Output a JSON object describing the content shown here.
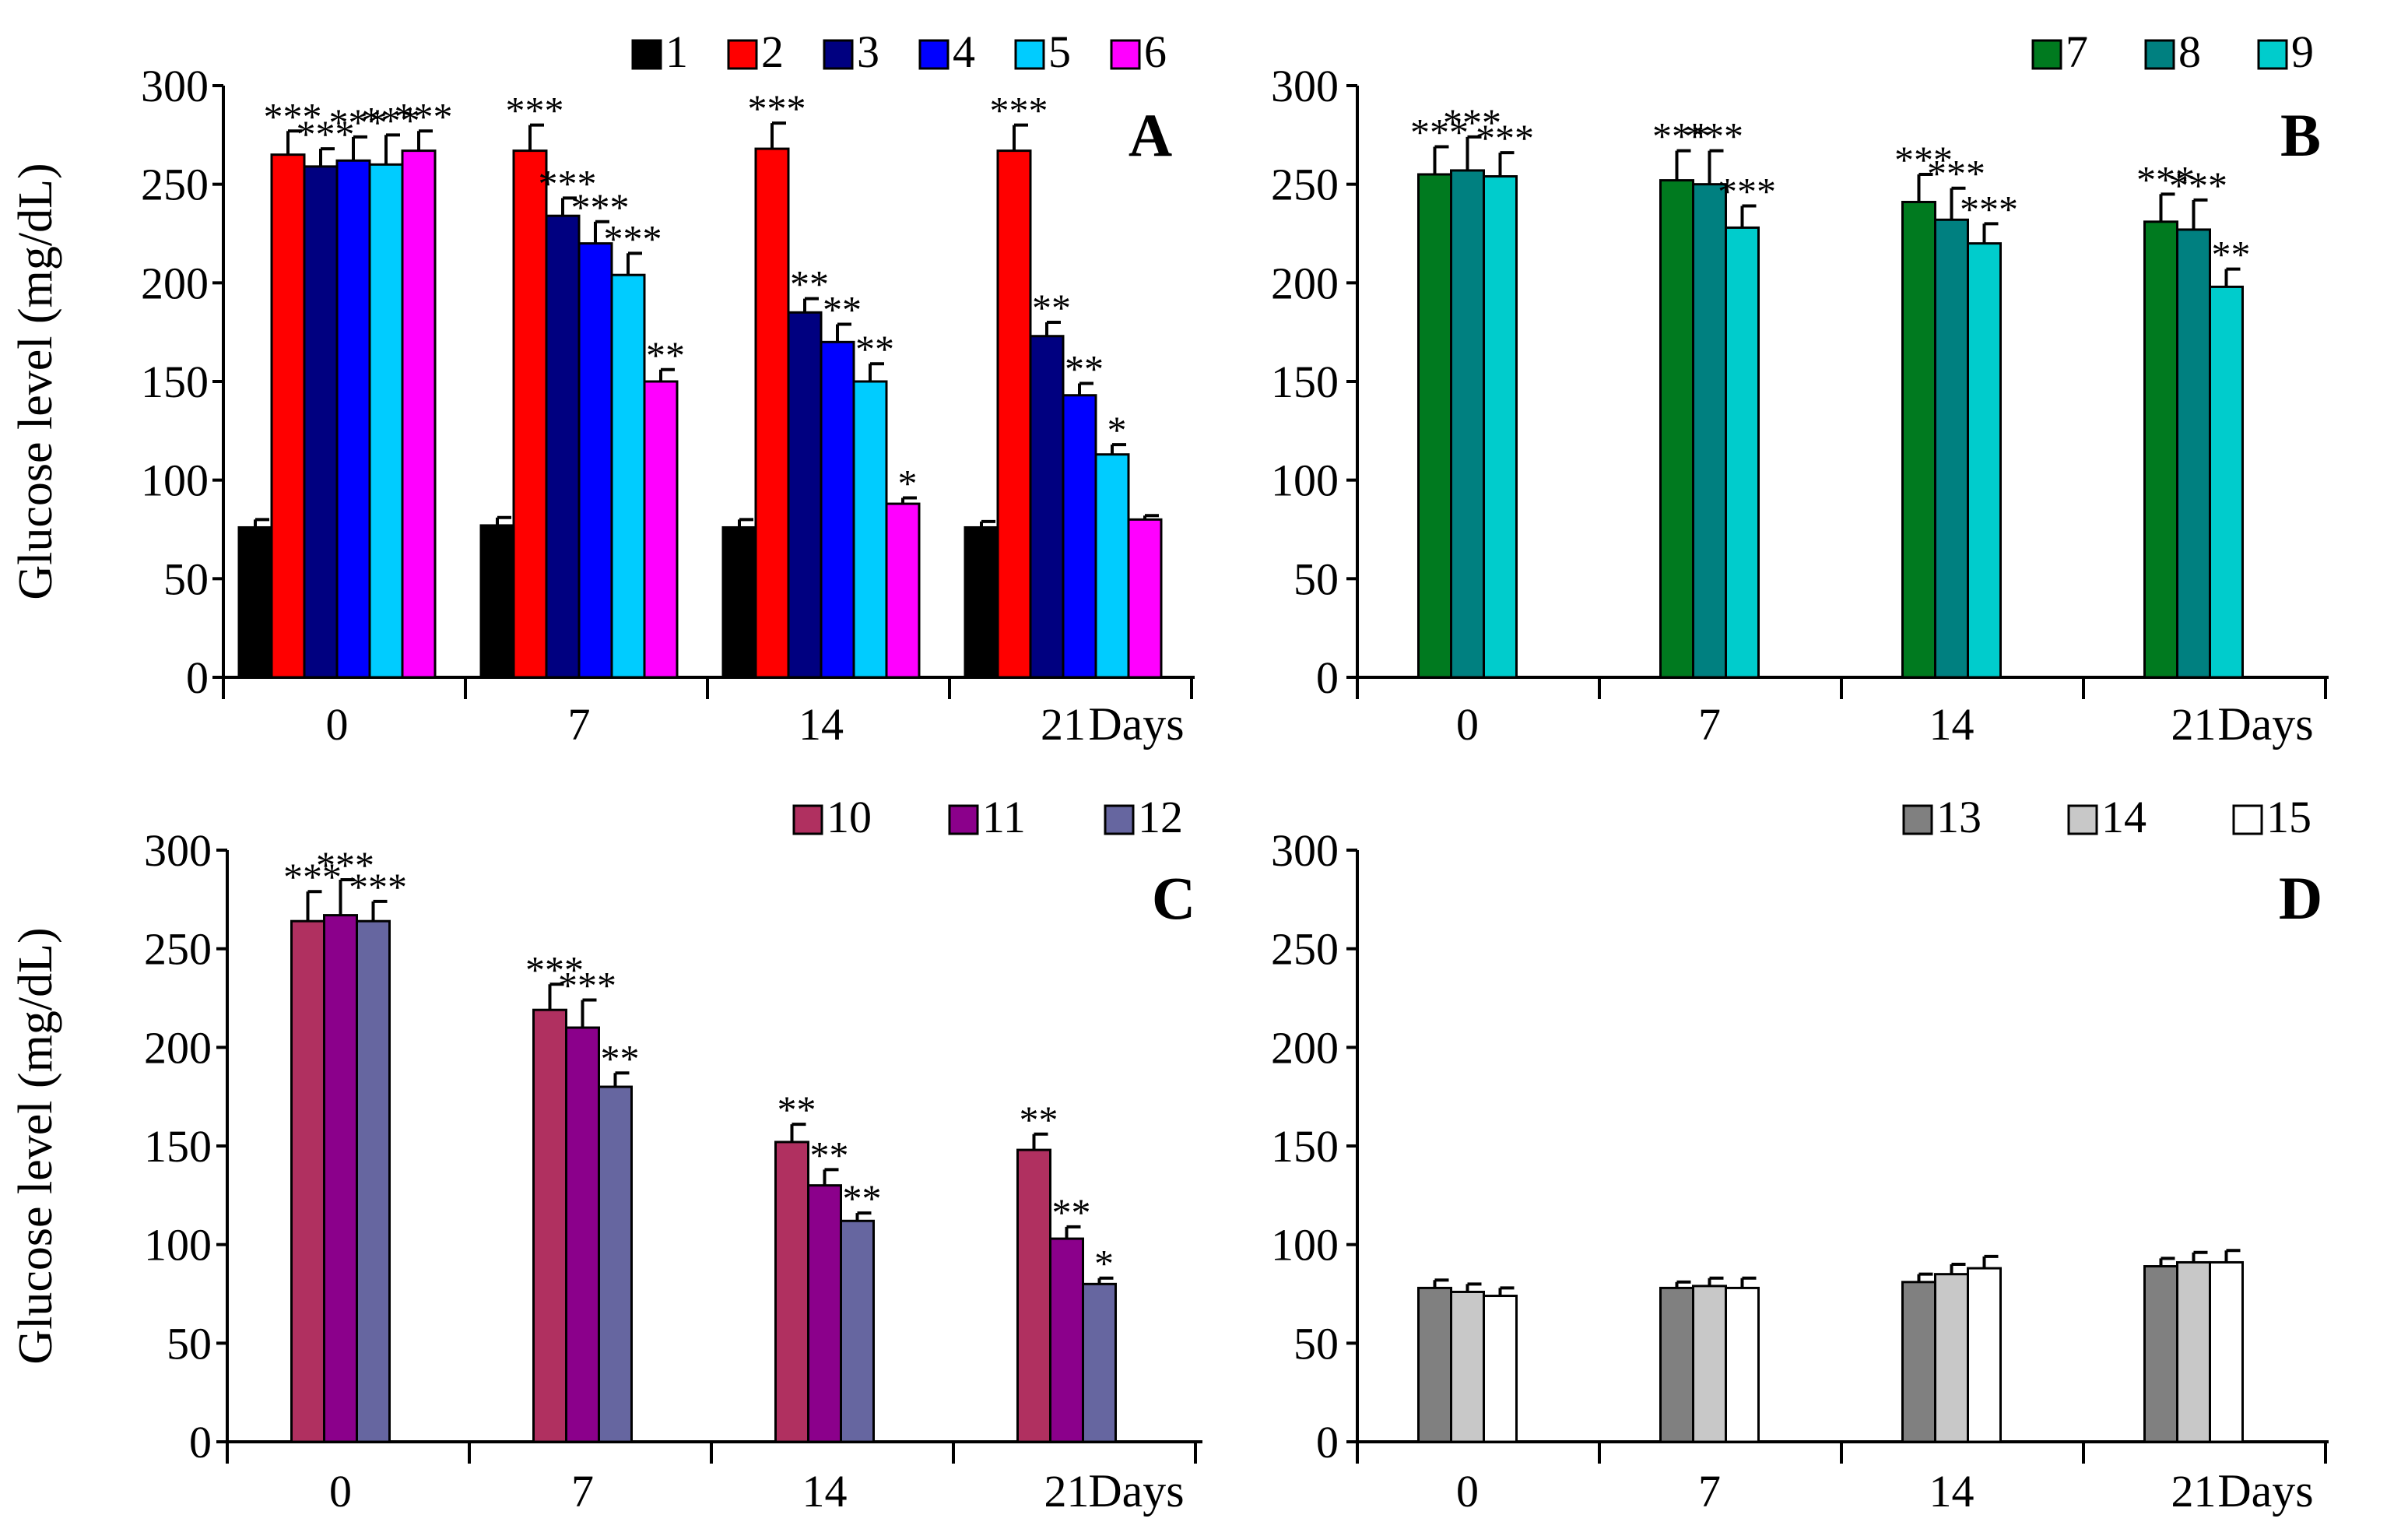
{
  "figure": {
    "xlabel": "Days",
    "ylabel": "Glucose level (mg/dL)"
  },
  "colors": {
    "1": "#000000",
    "2": "#ff0000",
    "3": "#000080",
    "4": "#0000ff",
    "5": "#00ccff",
    "6": "#ff00ff",
    "7": "#007a1f",
    "8": "#008080",
    "9": "#00cccc",
    "10": "#b03060",
    "11": "#8b008b",
    "12": "#6666a0",
    "13": "#808080",
    "14": "#c8c8c8",
    "15": "#ffffff"
  },
  "chart_data": [
    {
      "type": "bar",
      "panel": "A",
      "title": "",
      "xlabel": "Days",
      "ylabel": "Glucose level (mg/dL)",
      "ylim": [
        0,
        300
      ],
      "yticks": [
        "0",
        "50",
        "100",
        "150",
        "200",
        "250",
        "300"
      ],
      "categories": [
        "0",
        "7",
        "14",
        "21"
      ],
      "series": [
        {
          "name": "1",
          "values": [
            76,
            77,
            76,
            76
          ],
          "errors": [
            4,
            4,
            4,
            3
          ],
          "sig": [
            "",
            "",
            "",
            ""
          ]
        },
        {
          "name": "2",
          "values": [
            265,
            267,
            268,
            267
          ],
          "errors": [
            12,
            13,
            13,
            13
          ],
          "sig": [
            "***",
            "***",
            "***",
            "***"
          ]
        },
        {
          "name": "3",
          "values": [
            259,
            234,
            185,
            173
          ],
          "errors": [
            9,
            9,
            7,
            7
          ],
          "sig": [
            "***",
            "***",
            "**",
            "**"
          ]
        },
        {
          "name": "4",
          "values": [
            262,
            220,
            170,
            143
          ],
          "errors": [
            12,
            11,
            9,
            6
          ],
          "sig": [
            "***",
            "***",
            "**",
            "**"
          ]
        },
        {
          "name": "5",
          "values": [
            260,
            204,
            150,
            113
          ],
          "errors": [
            15,
            11,
            9,
            5
          ],
          "sig": [
            "***",
            "***",
            "**",
            "*"
          ]
        },
        {
          "name": "6",
          "values": [
            267,
            150,
            88,
            80
          ],
          "errors": [
            10,
            6,
            3,
            2
          ],
          "sig": [
            "***",
            "**",
            "*",
            ""
          ]
        }
      ]
    },
    {
      "type": "bar",
      "panel": "B",
      "title": "",
      "xlabel": "Days",
      "ylabel": "",
      "ylim": [
        0,
        300
      ],
      "yticks": [
        "0",
        "50",
        "100",
        "150",
        "200",
        "250",
        "300"
      ],
      "categories": [
        "0",
        "7",
        "14",
        "21"
      ],
      "series": [
        {
          "name": "7",
          "values": [
            255,
            252,
            241,
            231
          ],
          "errors": [
            14,
            15,
            14,
            14
          ],
          "sig": [
            "***",
            "***",
            "***",
            "***"
          ]
        },
        {
          "name": "8",
          "values": [
            257,
            250,
            232,
            227
          ],
          "errors": [
            17,
            17,
            16,
            15
          ],
          "sig": [
            "***",
            "***",
            "***",
            "***"
          ]
        },
        {
          "name": "9",
          "values": [
            254,
            228,
            220,
            198
          ],
          "errors": [
            12,
            11,
            10,
            9
          ],
          "sig": [
            "***",
            "***",
            "***",
            "**"
          ]
        }
      ]
    },
    {
      "type": "bar",
      "panel": "C",
      "title": "",
      "xlabel": "Days",
      "ylabel": "Glucose level (mg/dL)",
      "ylim": [
        0,
        300
      ],
      "yticks": [
        "0",
        "50",
        "100",
        "150",
        "200",
        "250",
        "300"
      ],
      "categories": [
        "0",
        "7",
        "14",
        "21"
      ],
      "series": [
        {
          "name": "10",
          "values": [
            264,
            219,
            152,
            148
          ],
          "errors": [
            15,
            13,
            9,
            8
          ],
          "sig": [
            "***",
            "***",
            "**",
            "**"
          ]
        },
        {
          "name": "11",
          "values": [
            267,
            210,
            130,
            103
          ],
          "errors": [
            18,
            14,
            8,
            6
          ],
          "sig": [
            "***",
            "***",
            "**",
            "**"
          ]
        },
        {
          "name": "12",
          "values": [
            264,
            180,
            112,
            80
          ],
          "errors": [
            10,
            7,
            4,
            3
          ],
          "sig": [
            "***",
            "**",
            "**",
            "*"
          ]
        }
      ]
    },
    {
      "type": "bar",
      "panel": "D",
      "title": "",
      "xlabel": "Days",
      "ylabel": "",
      "ylim": [
        0,
        300
      ],
      "yticks": [
        "0",
        "50",
        "100",
        "150",
        "200",
        "250",
        "300"
      ],
      "categories": [
        "0",
        "7",
        "14",
        "21"
      ],
      "series": [
        {
          "name": "13",
          "values": [
            78,
            78,
            81,
            89
          ],
          "errors": [
            4,
            3,
            4,
            4
          ],
          "sig": [
            "",
            "",
            "",
            ""
          ]
        },
        {
          "name": "14",
          "values": [
            76,
            79,
            85,
            91
          ],
          "errors": [
            4,
            4,
            5,
            5
          ],
          "sig": [
            "",
            "",
            "",
            ""
          ]
        },
        {
          "name": "15",
          "values": [
            74,
            78,
            88,
            91
          ],
          "errors": [
            4,
            5,
            6,
            6
          ],
          "sig": [
            "",
            "",
            "",
            ""
          ]
        }
      ]
    }
  ]
}
